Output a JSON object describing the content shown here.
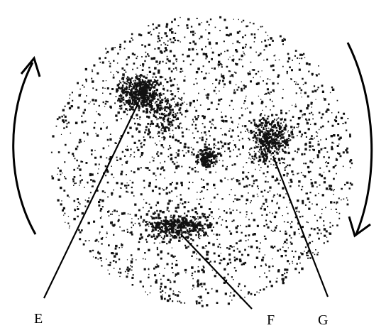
{
  "labels": [
    "E",
    "F",
    "G"
  ]
}
